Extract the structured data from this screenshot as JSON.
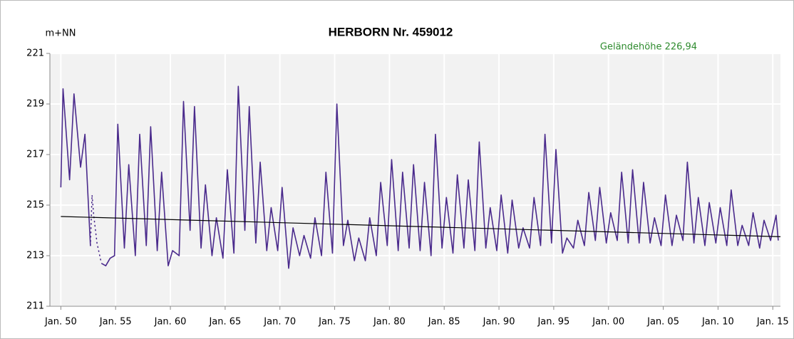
{
  "chart_data": {
    "type": "line",
    "title": "HERBORN  Nr. 459012",
    "y_label": "m+NN",
    "annotation": "Geländehöhe 226,94",
    "xlim": [
      1949,
      2015.7
    ],
    "ylim": [
      211,
      221
    ],
    "yticks": [
      211,
      213,
      215,
      217,
      219,
      221
    ],
    "xticks": [
      {
        "value": 1950,
        "label": "Jan. 50"
      },
      {
        "value": 1955,
        "label": "Jan. 55"
      },
      {
        "value": 1960,
        "label": "Jan. 60"
      },
      {
        "value": 1965,
        "label": "Jan. 65"
      },
      {
        "value": 1970,
        "label": "Jan. 70"
      },
      {
        "value": 1975,
        "label": "Jan. 75"
      },
      {
        "value": 1980,
        "label": "Jan. 80"
      },
      {
        "value": 1985,
        "label": "Jan. 85"
      },
      {
        "value": 1990,
        "label": "Jan. 90"
      },
      {
        "value": 1995,
        "label": "Jan. 95"
      },
      {
        "value": 2000,
        "label": "Jan. 00"
      },
      {
        "value": 2005,
        "label": "Jan. 05"
      },
      {
        "value": 2010,
        "label": "Jan. 10"
      },
      {
        "value": 2015,
        "label": "Jan. 15"
      }
    ],
    "grid": true,
    "series": [
      {
        "color": "#4a2a8c",
        "style": "solid",
        "x": [
          1950.0,
          1950.2,
          1950.8,
          1951.2,
          1951.8,
          1952.2,
          1952.7,
          1953.2,
          1953.7,
          1954.1,
          1954.5,
          1954.9,
          1955.2,
          1955.8,
          1956.2,
          1956.8,
          1957.2,
          1957.8,
          1958.2,
          1958.8,
          1959.2,
          1959.8,
          1960.2,
          1960.8,
          1961.2,
          1961.8,
          1962.2,
          1962.8,
          1963.2,
          1963.8,
          1964.2,
          1964.8,
          1965.2,
          1965.8,
          1966.2,
          1966.8,
          1967.2,
          1967.8,
          1968.2,
          1968.8,
          1969.2,
          1969.8,
          1970.2,
          1970.8,
          1971.2,
          1971.8,
          1972.2,
          1972.8,
          1973.2,
          1973.8,
          1974.2,
          1974.8,
          1975.2,
          1975.8,
          1976.2,
          1976.8,
          1977.2,
          1977.8,
          1978.2,
          1978.8,
          1979.2,
          1979.8,
          1980.2,
          1980.8,
          1981.2,
          1981.8,
          1982.2,
          1982.8,
          1983.2,
          1983.8,
          1984.2,
          1984.8,
          1985.2,
          1985.8,
          1986.2,
          1986.8,
          1987.2,
          1987.8,
          1988.2,
          1988.8,
          1989.2,
          1989.8,
          1990.2,
          1990.8,
          1991.2,
          1991.8,
          1992.2,
          1992.8,
          1993.2,
          1993.8,
          1994.2,
          1994.8,
          1995.2,
          1995.8,
          1996.2,
          1996.8,
          1997.2,
          1997.8,
          1998.2,
          1998.8,
          1999.2,
          1999.8,
          2000.2,
          2000.8,
          2001.2,
          2001.8,
          2002.2,
          2002.8,
          2003.2,
          2003.8,
          2004.2,
          2004.8,
          2005.2,
          2005.8,
          2006.2,
          2006.8,
          2007.2,
          2007.8,
          2008.2,
          2008.8,
          2009.2,
          2009.8,
          2010.2,
          2010.8,
          2011.2,
          2011.8,
          2012.2,
          2012.8,
          2013.2,
          2013.8,
          2014.2,
          2014.8,
          2015.3,
          2015.5
        ],
        "values": [
          215.7,
          219.6,
          216.0,
          219.4,
          216.5,
          217.8,
          213.4,
          null,
          212.7,
          212.6,
          212.9,
          213.0,
          218.2,
          213.3,
          216.6,
          213.0,
          217.8,
          213.4,
          218.1,
          213.2,
          216.3,
          212.6,
          213.2,
          213.0,
          219.1,
          214.0,
          218.9,
          213.3,
          215.8,
          213.0,
          214.5,
          212.9,
          216.4,
          213.1,
          219.7,
          214.0,
          218.9,
          213.5,
          216.7,
          213.2,
          214.9,
          213.2,
          215.7,
          212.5,
          214.1,
          213.0,
          213.8,
          212.9,
          214.5,
          213.0,
          216.3,
          213.1,
          219.0,
          213.4,
          214.4,
          212.8,
          213.7,
          212.8,
          214.5,
          213.0,
          215.9,
          213.4,
          216.8,
          213.2,
          216.3,
          213.3,
          216.6,
          213.2,
          215.9,
          213.0,
          217.8,
          213.3,
          215.3,
          213.1,
          216.2,
          213.3,
          216.0,
          213.2,
          217.5,
          213.3,
          214.9,
          213.2,
          215.4,
          213.1,
          215.2,
          213.3,
          214.1,
          213.3,
          215.3,
          213.4,
          217.8,
          213.5,
          217.2,
          213.1,
          213.7,
          213.3,
          214.4,
          213.4,
          215.5,
          213.6,
          215.7,
          213.5,
          214.7,
          213.6,
          216.3,
          213.5,
          216.4,
          213.5,
          215.9,
          213.5,
          214.5,
          213.4,
          215.4,
          213.4,
          214.6,
          213.6,
          216.7,
          213.5,
          215.3,
          213.4,
          215.1,
          213.5,
          214.9,
          213.4,
          215.6,
          213.4,
          214.2,
          213.4,
          214.7,
          213.3,
          214.4,
          213.6,
          214.6,
          213.6
        ]
      },
      {
        "color": "#4a2a8c",
        "style": "dotted",
        "x": [
          1952.7,
          1952.85,
          1953.0,
          1953.3,
          1953.7
        ],
        "values": [
          213.4,
          215.4,
          214.6,
          213.5,
          212.7
        ]
      },
      {
        "color": "#000000",
        "style": "solid",
        "x": [
          1950.0,
          2015.7
        ],
        "values": [
          214.55,
          213.75
        ]
      }
    ]
  }
}
